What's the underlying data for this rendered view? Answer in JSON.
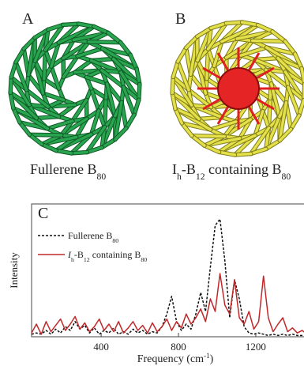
{
  "panels": {
    "a": {
      "letter": "A",
      "caption": [
        {
          "text": "Fullerene B"
        },
        {
          "sub": "80"
        }
      ]
    },
    "b": {
      "letter": "B",
      "caption": [
        {
          "text": "I"
        },
        {
          "sub": "h"
        },
        {
          "text": "-B"
        },
        {
          "sub": "12"
        },
        {
          "text": " containing B"
        },
        {
          "sub": "80"
        }
      ]
    }
  },
  "chart_data": {
    "type": "line",
    "letter": "C",
    "y_label": "Intensity",
    "x_label": [
      {
        "text": "Frequency (cm"
      },
      {
        "sup": "-1"
      },
      {
        "text": ")"
      }
    ],
    "xlim": [
      40,
      1470
    ],
    "ylim": [
      0,
      1
    ],
    "xticks": [
      400,
      800,
      1200
    ],
    "x": [
      40,
      65,
      90,
      115,
      140,
      165,
      190,
      215,
      240,
      265,
      290,
      315,
      340,
      365,
      390,
      415,
      440,
      465,
      490,
      515,
      540,
      565,
      590,
      615,
      640,
      665,
      690,
      715,
      740,
      765,
      790,
      815,
      840,
      865,
      890,
      915,
      940,
      965,
      990,
      1015,
      1040,
      1065,
      1090,
      1115,
      1140,
      1165,
      1190,
      1215,
      1240,
      1265,
      1290,
      1315,
      1340,
      1365,
      1390,
      1415,
      1440,
      1465
    ],
    "series": [
      {
        "name": [
          {
            "text": "Fullerene B"
          },
          {
            "sub": "80"
          }
        ],
        "color": "#111111",
        "dash": "3,2",
        "values": [
          0.02,
          0.03,
          0.02,
          0.05,
          0.02,
          0.06,
          0.03,
          0.08,
          0.05,
          0.12,
          0.06,
          0.09,
          0.03,
          0.07,
          0.02,
          0.05,
          0.03,
          0.07,
          0.02,
          0.04,
          0.02,
          0.06,
          0.03,
          0.05,
          0.02,
          0.04,
          0.03,
          0.08,
          0.18,
          0.32,
          0.12,
          0.05,
          0.1,
          0.06,
          0.18,
          0.35,
          0.2,
          0.55,
          0.88,
          0.93,
          0.6,
          0.15,
          0.45,
          0.3,
          0.08,
          0.03,
          0.02,
          0.03,
          0.02,
          0.01,
          0.02,
          0.01,
          0.02,
          0.01,
          0.02,
          0.01,
          0.01,
          0.01
        ]
      },
      {
        "name": [
          {
            "italic": "I"
          },
          {
            "sub": "h"
          },
          {
            "text": "-B"
          },
          {
            "sub": "12"
          },
          {
            "text": " containing  B"
          },
          {
            "sub": "80"
          }
        ],
        "color": "#c0282a",
        "values": [
          0.03,
          0.1,
          0.02,
          0.12,
          0.04,
          0.09,
          0.14,
          0.05,
          0.1,
          0.16,
          0.06,
          0.11,
          0.04,
          0.08,
          0.14,
          0.05,
          0.1,
          0.04,
          0.12,
          0.03,
          0.07,
          0.12,
          0.05,
          0.09,
          0.03,
          0.11,
          0.04,
          0.08,
          0.14,
          0.05,
          0.12,
          0.07,
          0.18,
          0.1,
          0.15,
          0.22,
          0.12,
          0.3,
          0.2,
          0.5,
          0.25,
          0.18,
          0.45,
          0.15,
          0.1,
          0.2,
          0.06,
          0.12,
          0.48,
          0.15,
          0.04,
          0.1,
          0.15,
          0.04,
          0.07,
          0.03,
          0.05,
          0.02
        ]
      }
    ]
  }
}
